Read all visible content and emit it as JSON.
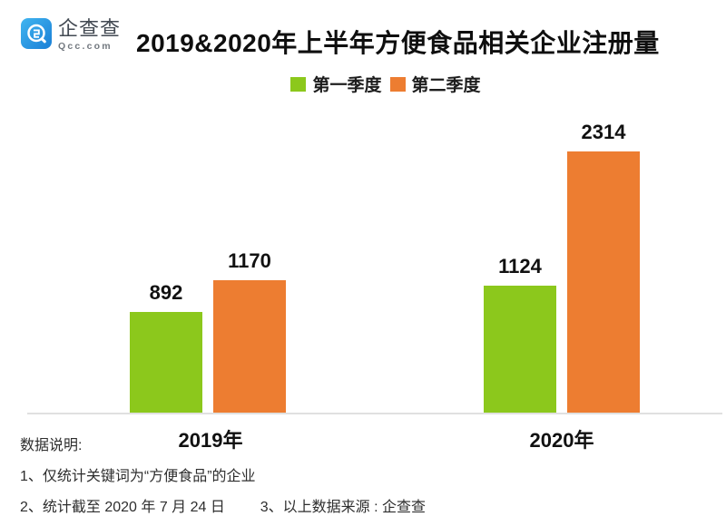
{
  "logo": {
    "name": "企查查",
    "domain": "Qcc.com",
    "icon": "qcc-q-spiral-icon",
    "icon_gradient_top": "#41b5f0",
    "icon_gradient_bottom": "#1a7fd6"
  },
  "header": {
    "title": "2019&2020年上半年方便食品相关企业注册量"
  },
  "legend": [
    {
      "label": "第一季度",
      "color": "#8cc81c"
    },
    {
      "label": "第二季度",
      "color": "#ed7d31"
    }
  ],
  "chart_data": {
    "type": "bar",
    "categories": [
      "2019年",
      "2020年"
    ],
    "series": [
      {
        "name": "第一季度",
        "color": "#8cc81c",
        "values": [
          892,
          1124
        ]
      },
      {
        "name": "第二季度",
        "color": "#ed7d31",
        "values": [
          1170,
          2314
        ]
      }
    ],
    "title": "2019&2020年上半年方便食品相关企业注册量",
    "xlabel": "",
    "ylabel": "",
    "ylim": [
      0,
      2314
    ],
    "grid": false,
    "legend_position": "top",
    "data_labels": true,
    "axis_line_color": "#e0e0e0"
  },
  "notes": {
    "heading": "数据说明:",
    "note1": "1、仅统计关键词为“方便食品”的企业",
    "note2": "2、统计截至 2020 年 7 月 24 日",
    "note3": "3、以上数据来源 : 企查查"
  }
}
